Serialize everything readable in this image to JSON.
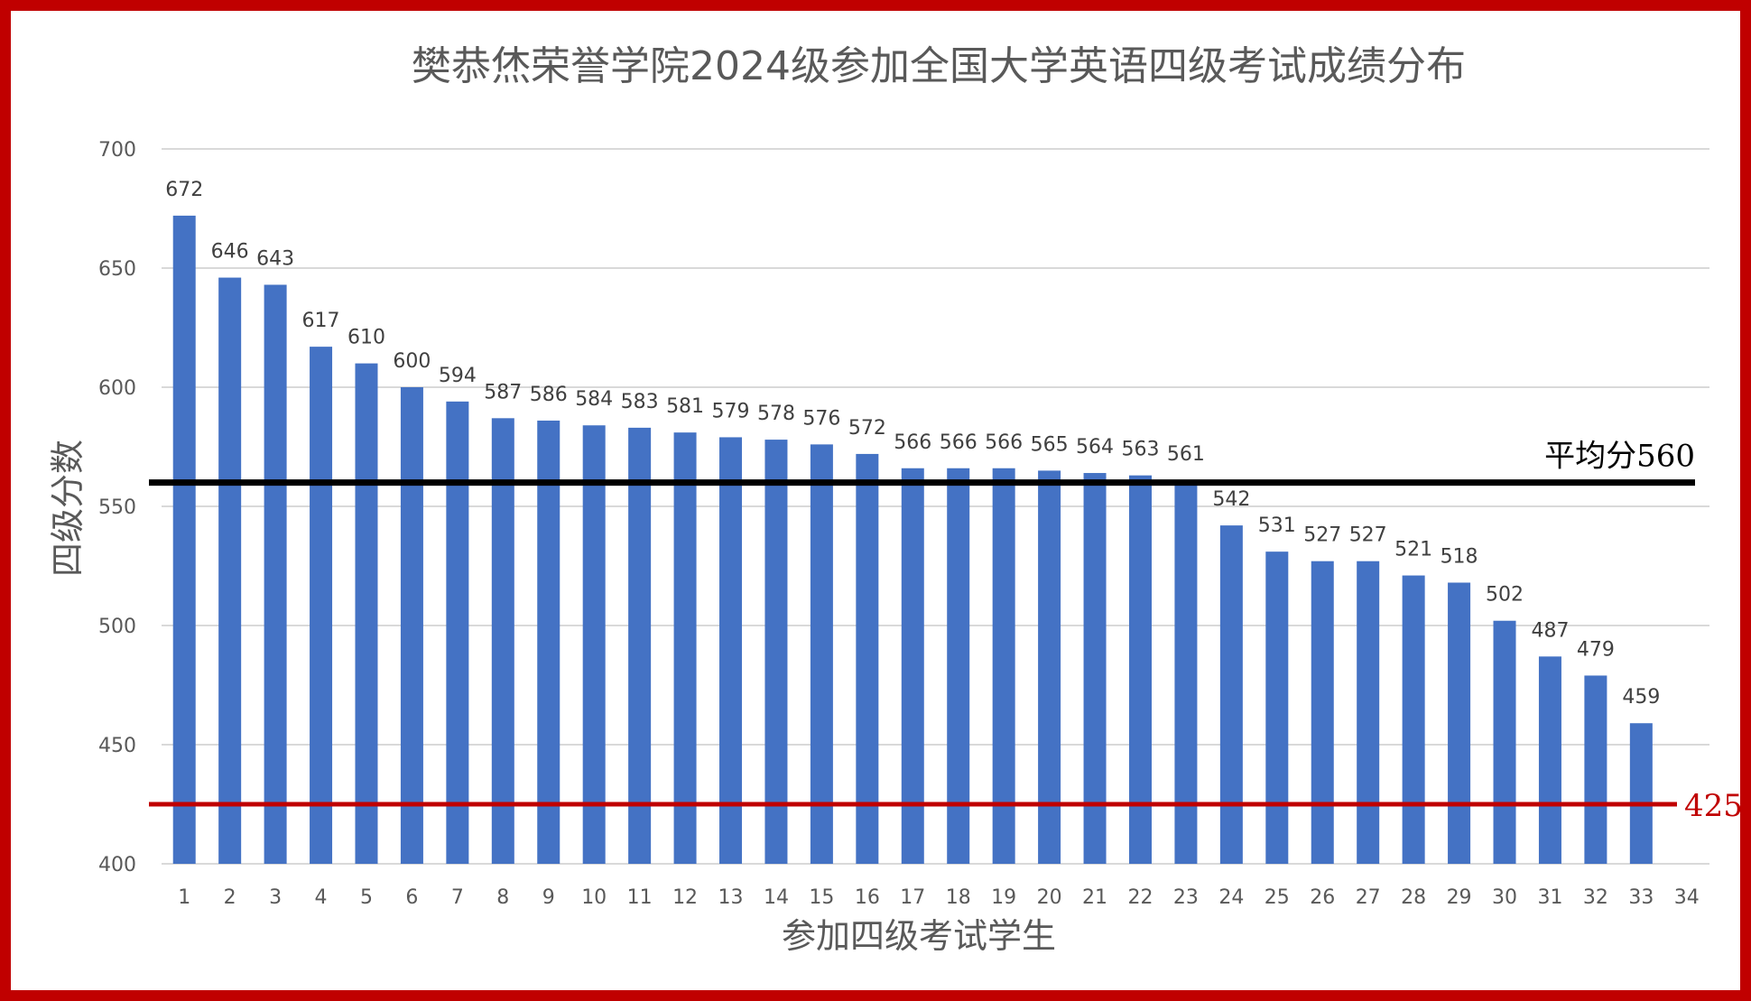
{
  "chart_data": {
    "type": "bar",
    "title": "樊恭烋荣誉学院2024级参加全国大学英语四级考试成绩分布",
    "xlabel": "参加四级考试学生",
    "ylabel": "四级分数",
    "ylim": [
      400,
      700
    ],
    "yticks": [
      400,
      450,
      500,
      550,
      600,
      650,
      700
    ],
    "grid": true,
    "categories": [
      "1",
      "2",
      "3",
      "4",
      "5",
      "6",
      "7",
      "8",
      "9",
      "10",
      "11",
      "12",
      "13",
      "14",
      "15",
      "16",
      "17",
      "18",
      "19",
      "20",
      "21",
      "22",
      "23",
      "24",
      "25",
      "26",
      "27",
      "28",
      "29",
      "30",
      "31",
      "32",
      "33",
      "34"
    ],
    "values": [
      672,
      646,
      643,
      617,
      610,
      600,
      594,
      587,
      586,
      584,
      583,
      581,
      579,
      578,
      576,
      572,
      566,
      566,
      566,
      565,
      564,
      563,
      561,
      542,
      531,
      527,
      527,
      521,
      518,
      502,
      487,
      479,
      459,
      null
    ],
    "bar_color": "#4472c4",
    "reference_lines": [
      {
        "value": 560,
        "label": "平均分560",
        "color": "#000000"
      },
      {
        "value": 425,
        "label": "425",
        "color": "#c00000"
      }
    ],
    "frame_color": "#c00000"
  }
}
